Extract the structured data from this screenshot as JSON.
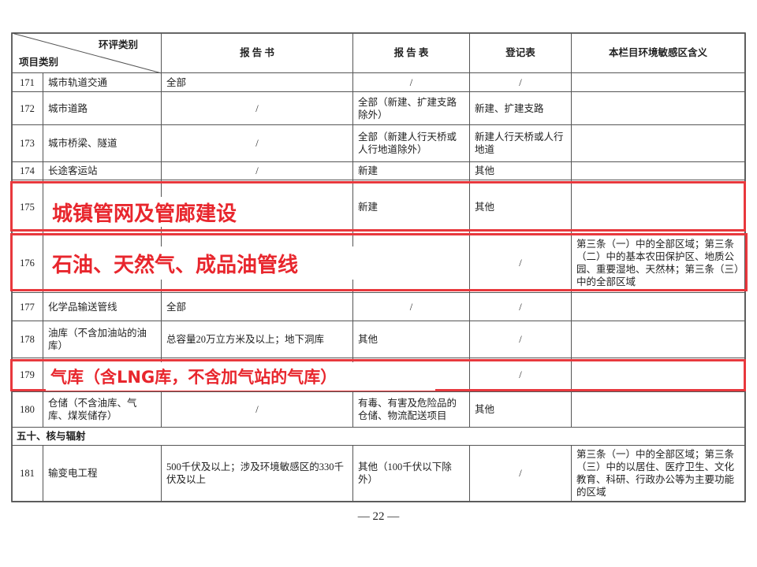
{
  "header": {
    "diagonal_top": "环评类别",
    "diagonal_bottom": "项目类别",
    "columns": [
      "报 告 书",
      "报 告 表",
      "登记表",
      "本栏目环境敏感区含义"
    ]
  },
  "rows": [
    {
      "no": 171,
      "name": "城市轨道交通",
      "book": "全部",
      "table": "/",
      "reg": "/"
    },
    {
      "no": 172,
      "name": "城市道路",
      "book": "/",
      "table": "全部（新建、扩建支路除外）",
      "reg": "新建、扩建支路"
    },
    {
      "no": 173,
      "name": "城市桥梁、隧道",
      "book": "/",
      "table": "全部（新建人行天桥或人行地道除外）",
      "reg": "新建人行天桥或人行地道"
    },
    {
      "no": 174,
      "name": "长途客运站",
      "book": "/",
      "table": "新建",
      "reg": "其他"
    },
    {
      "no": 175,
      "table": "新建",
      "reg": "其他"
    },
    {
      "no": 176,
      "reg": "/",
      "area": "第三条（一）中的全部区域；第三条（二）中的基本农田保护区、地质公园、重要湿地、天然林；第三条（三）中的全部区域"
    },
    {
      "no": 177,
      "name": "化学品输送管线",
      "book": "全部",
      "table": "/",
      "reg": "/"
    },
    {
      "no": 178,
      "name": "油库（不含加油站的油库）",
      "book": "总容量20万立方米及以上；地下洞库",
      "table": "其他",
      "reg": "/"
    },
    {
      "no": 179,
      "reg": "/"
    },
    {
      "no": 180,
      "name": "仓储（不含油库、气库、煤炭储存）",
      "book": "/",
      "table": "有毒、有害及危险品的仓储、物流配送项目",
      "reg": "其他"
    },
    {
      "section": "五十、核与辐射"
    },
    {
      "no": 181,
      "name": "输变电工程",
      "book": "500千伏及以上；涉及环境敏感区的330千伏及以上",
      "table": "其他（100千伏以下除外）",
      "reg": "/",
      "area": "第三条（一）中的全部区域；第三条（三）中的以居住、医疗卫生、文化教育、科研、行政办公等为主要功能的区域"
    }
  ],
  "highlights": [
    "城镇管网及管廊建设",
    "石油、天然气、成品油管线",
    "气库（含LNG库，不含加气站的气库）"
  ],
  "page_number": "— 22 —"
}
